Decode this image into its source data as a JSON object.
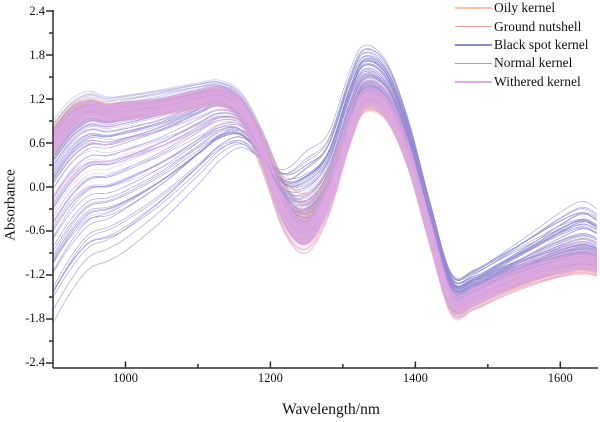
{
  "figure": {
    "background": "#ffffff",
    "axis_color": "#2e2e2e"
  },
  "chart_data": {
    "type": "line",
    "title": "",
    "xlabel": "Wavelength/nm",
    "ylabel": "Absorbance",
    "x_range": [
      900,
      1652
    ],
    "y_range": [
      -2.4,
      2.4
    ],
    "grid": false,
    "legend_position": "top-right",
    "x_ticks": {
      "values": [
        1000,
        1200,
        1400,
        1600
      ],
      "labels": [
        "1000",
        "1200",
        "1400",
        "1600"
      ],
      "minor": [
        1100,
        1300,
        1500
      ]
    },
    "y_ticks": {
      "values": [
        2.4,
        1.8,
        1.2,
        0.6,
        0.0,
        -0.6,
        -1.2,
        -1.8,
        -2.4
      ],
      "labels": [
        "2.4",
        "1.8",
        "1.2",
        "0.6",
        "0.0",
        "-0.6",
        "-1.2",
        "-1.8",
        "-2.4"
      ],
      "minor": [
        2.1,
        1.5,
        0.9,
        0.3,
        -0.3,
        -0.9,
        -1.5,
        -2.1
      ]
    },
    "wavelengths_nm": [
      900,
      925,
      950,
      975,
      1000,
      1050,
      1100,
      1130,
      1160,
      1190,
      1220,
      1250,
      1280,
      1310,
      1330,
      1360,
      1390,
      1420,
      1450,
      1480,
      1520,
      1560,
      1600,
      1630,
      1650
    ],
    "outlier_amp": [
      -2.3,
      -2.2,
      -2.05,
      -1.92,
      -1.82,
      -1.52,
      -1.18,
      -0.92,
      -0.55,
      -0.15,
      0.45,
      0.95,
      0.75,
      0.72,
      0.62,
      0.52,
      0.4,
      0.3,
      0.22,
      0.25,
      0.33,
      0.46,
      0.62,
      0.72,
      0.66
    ],
    "series": [
      {
        "key": "oily",
        "name": "Oily kernel",
        "color": "#F6C3A7",
        "lines": 28,
        "outlier_lines": 0,
        "outlier_amp_scale": 0,
        "mean_absorbance": [
          0.68,
          0.98,
          1.09,
          1.04,
          1.07,
          1.12,
          1.21,
          1.24,
          1.04,
          0.44,
          -0.3,
          -0.55,
          -0.12,
          0.77,
          1.17,
          1.06,
          0.41,
          -0.6,
          -1.56,
          -1.51,
          -1.33,
          -1.18,
          -1.08,
          -1.03,
          -1.06
        ],
        "spread": [
          0.12,
          0.11,
          0.1,
          0.09,
          0.09,
          0.09,
          0.09,
          0.09,
          0.1,
          0.16,
          0.2,
          0.2,
          0.16,
          0.13,
          0.11,
          0.11,
          0.12,
          0.14,
          0.12,
          0.11,
          0.1,
          0.1,
          0.1,
          0.1,
          0.1
        ]
      },
      {
        "key": "ground",
        "name": "Ground nutshell",
        "color": "#EE9C96",
        "lines": 38,
        "outlier_lines": 0,
        "outlier_amp_scale": 0,
        "mean_absorbance": [
          0.66,
          0.96,
          1.07,
          1.02,
          1.05,
          1.1,
          1.19,
          1.22,
          1.02,
          0.42,
          -0.3,
          -0.52,
          -0.1,
          0.76,
          1.16,
          1.05,
          0.4,
          -0.62,
          -1.6,
          -1.54,
          -1.36,
          -1.21,
          -1.1,
          -1.05,
          -1.08
        ],
        "spread": [
          0.14,
          0.12,
          0.1,
          0.1,
          0.1,
          0.1,
          0.1,
          0.1,
          0.12,
          0.22,
          0.32,
          0.36,
          0.28,
          0.16,
          0.13,
          0.13,
          0.14,
          0.16,
          0.14,
          0.13,
          0.12,
          0.12,
          0.12,
          0.12,
          0.12
        ]
      },
      {
        "key": "black_spot",
        "name": "Black spot kernel",
        "color": "#8D8AD1",
        "lines": 46,
        "outlier_lines": 34,
        "outlier_amp_scale": 1.0,
        "mean_absorbance": [
          0.5,
          0.82,
          0.98,
          0.95,
          0.99,
          1.09,
          1.24,
          1.3,
          1.1,
          0.52,
          -0.22,
          -0.48,
          -0.03,
          0.86,
          1.3,
          1.18,
          0.52,
          -0.5,
          -1.42,
          -1.4,
          -1.24,
          -1.1,
          -0.98,
          -0.93,
          -0.97
        ],
        "spread": [
          0.35,
          0.32,
          0.28,
          0.25,
          0.24,
          0.22,
          0.16,
          0.13,
          0.16,
          0.2,
          0.24,
          0.24,
          0.2,
          0.2,
          0.18,
          0.18,
          0.18,
          0.18,
          0.15,
          0.14,
          0.14,
          0.14,
          0.14,
          0.14,
          0.14
        ]
      },
      {
        "key": "normal",
        "name": "Normal kernel",
        "color": "#AE92D8",
        "lines": 55,
        "outlier_lines": 10,
        "outlier_amp_scale": 0.7,
        "mean_absorbance": [
          0.63,
          0.94,
          1.06,
          1.01,
          1.05,
          1.11,
          1.21,
          1.25,
          1.06,
          0.46,
          -0.33,
          -0.6,
          -0.13,
          0.79,
          1.21,
          1.09,
          0.43,
          -0.59,
          -1.53,
          -1.48,
          -1.3,
          -1.15,
          -1.05,
          -1.0,
          -1.03
        ],
        "spread": [
          0.16,
          0.14,
          0.12,
          0.11,
          0.11,
          0.11,
          0.11,
          0.11,
          0.13,
          0.18,
          0.2,
          0.18,
          0.16,
          0.14,
          0.13,
          0.13,
          0.14,
          0.16,
          0.14,
          0.13,
          0.12,
          0.12,
          0.12,
          0.12,
          0.12
        ]
      },
      {
        "key": "withered",
        "name": "Withered kernel",
        "color": "#DFABE3",
        "lines": 85,
        "outlier_lines": 12,
        "outlier_amp_scale": 0.55,
        "mean_absorbance": [
          0.6,
          0.92,
          1.05,
          1.0,
          1.04,
          1.1,
          1.2,
          1.24,
          1.05,
          0.45,
          -0.35,
          -0.62,
          -0.15,
          0.78,
          1.2,
          1.08,
          0.42,
          -0.6,
          -1.55,
          -1.5,
          -1.32,
          -1.17,
          -1.07,
          -1.02,
          -1.05
        ],
        "spread": [
          0.18,
          0.15,
          0.13,
          0.12,
          0.12,
          0.12,
          0.12,
          0.12,
          0.14,
          0.2,
          0.22,
          0.2,
          0.18,
          0.16,
          0.14,
          0.14,
          0.16,
          0.18,
          0.16,
          0.14,
          0.13,
          0.13,
          0.13,
          0.13,
          0.13
        ]
      }
    ]
  }
}
